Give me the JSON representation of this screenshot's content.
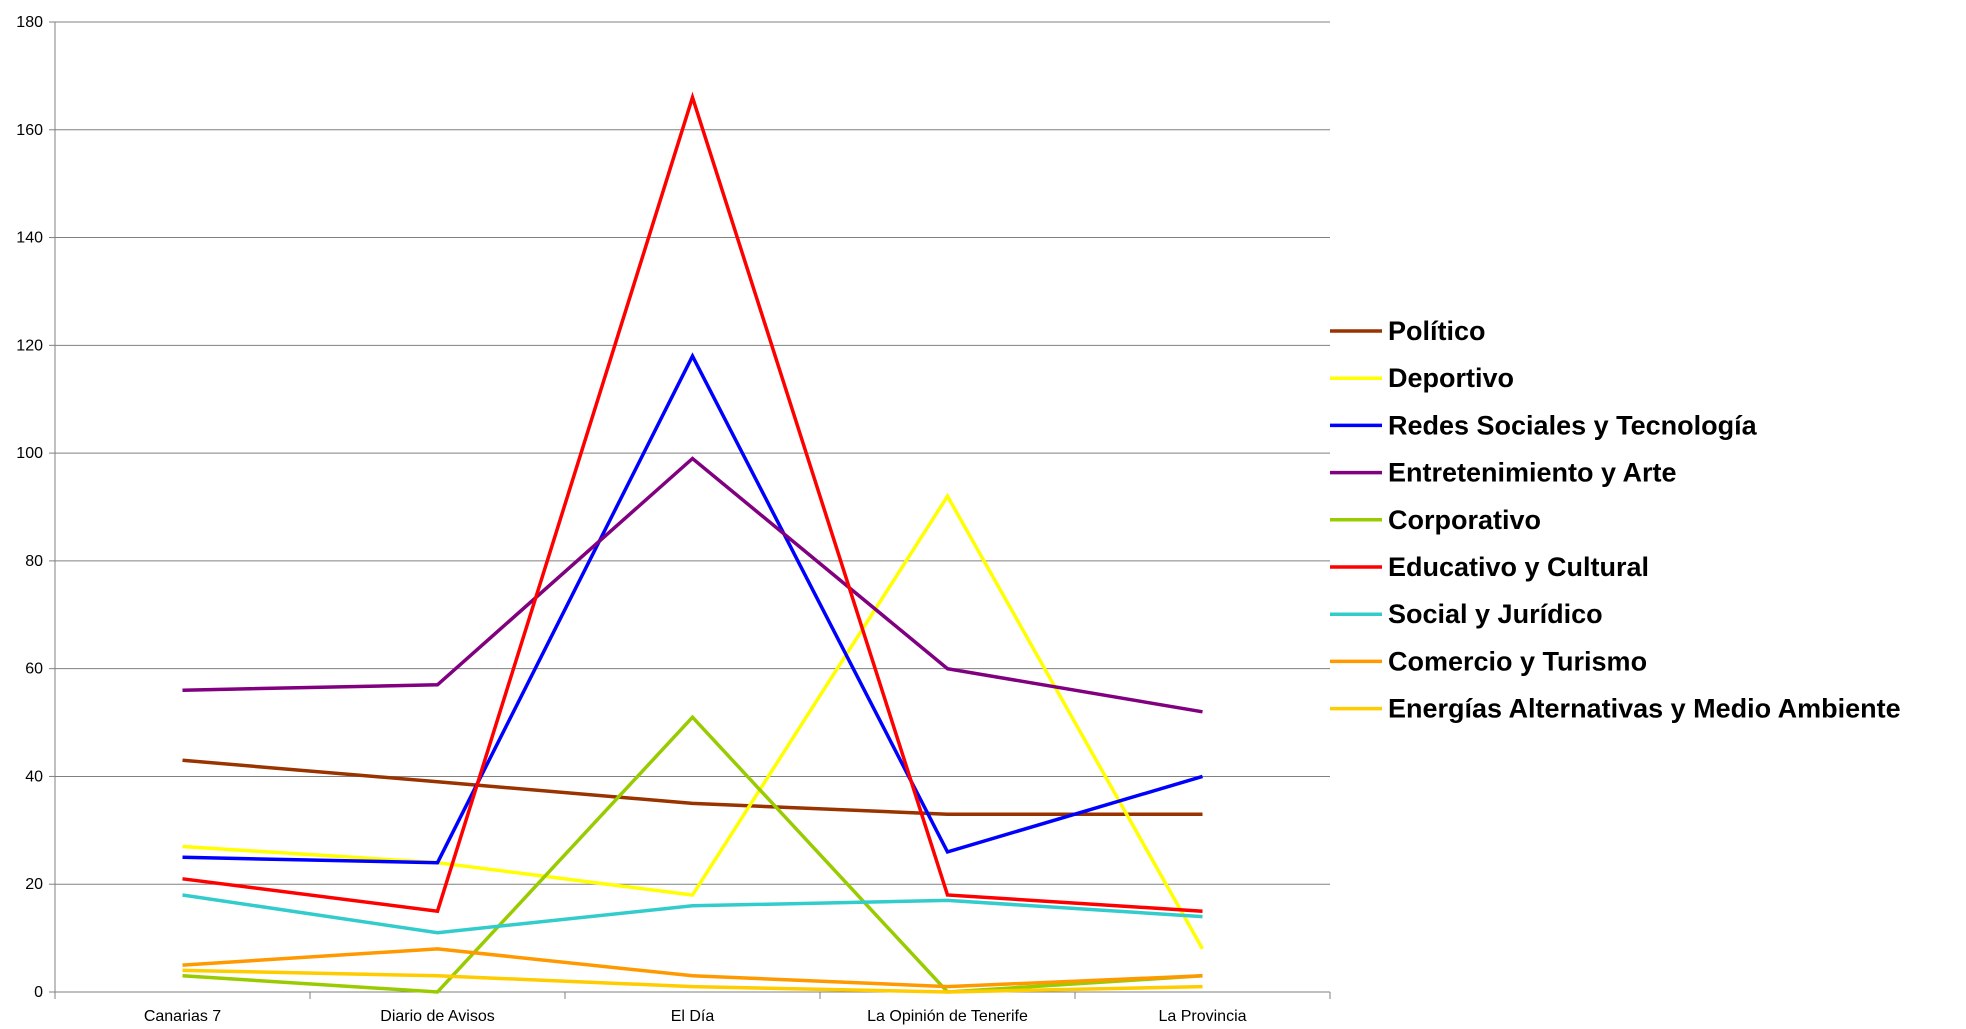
{
  "chart_data": {
    "type": "line",
    "title": "",
    "xlabel": "",
    "ylabel": "",
    "ylim": [
      0,
      180
    ],
    "yticks": [
      0,
      20,
      40,
      60,
      80,
      100,
      120,
      140,
      160,
      180
    ],
    "grid": true,
    "legend_position": "right",
    "categories": [
      "Canarias 7",
      "Diario de Avisos",
      "El Día",
      "La Opinión de Tenerife",
      "La Provincia"
    ],
    "series": [
      {
        "name": "Político",
        "color": "#993300",
        "values": [
          43,
          39,
          35,
          33,
          33
        ]
      },
      {
        "name": "Deportivo",
        "color": "#FFFF00",
        "values": [
          27,
          24,
          18,
          92,
          8
        ]
      },
      {
        "name": "Redes Sociales y Tecnología",
        "color": "#0000FF",
        "values": [
          25,
          24,
          118,
          26,
          40
        ]
      },
      {
        "name": "Entretenimiento y Arte",
        "color": "#800080",
        "values": [
          56,
          57,
          99,
          60,
          52
        ]
      },
      {
        "name": "Corporativo",
        "color": "#99CC00",
        "values": [
          3,
          0,
          51,
          0,
          3
        ]
      },
      {
        "name": "Educativo y Cultural",
        "color": "#FF0000",
        "values": [
          21,
          15,
          166,
          18,
          15
        ]
      },
      {
        "name": "Social y Jurídico",
        "color": "#33CCCC",
        "values": [
          18,
          11,
          16,
          17,
          14
        ]
      },
      {
        "name": "Comercio y Turismo",
        "color": "#FF9900",
        "values": [
          5,
          8,
          3,
          1,
          3
        ]
      },
      {
        "name": "Energías Alternativas y Medio Ambiente",
        "color": "#FFCC00",
        "values": [
          4,
          3,
          1,
          0,
          1
        ]
      }
    ]
  }
}
